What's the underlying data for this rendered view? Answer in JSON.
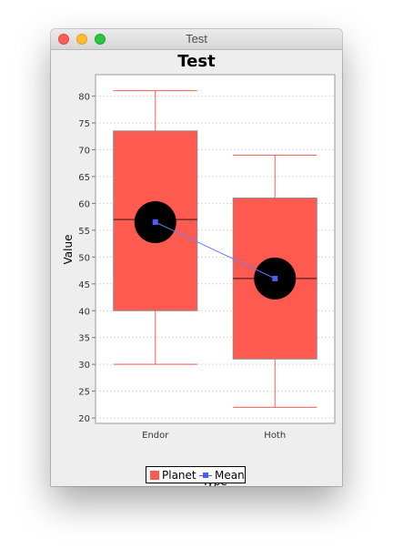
{
  "window": {
    "title": "Test"
  },
  "chart_data": {
    "type": "box",
    "title": "Test",
    "xlabel": "Type",
    "ylabel": "Value",
    "ylim": [
      19,
      84
    ],
    "yticks": [
      20,
      25,
      30,
      35,
      40,
      45,
      50,
      55,
      60,
      65,
      70,
      75,
      80
    ],
    "categories": [
      "Endor",
      "Hoth"
    ],
    "series": [
      {
        "name": "Planet",
        "boxes": [
          {
            "category": "Endor",
            "min": 30,
            "q1": 40,
            "median": 57,
            "q3": 73.5,
            "max": 81
          },
          {
            "category": "Hoth",
            "min": 22,
            "q1": 31,
            "median": 46,
            "q3": 61,
            "max": 69
          }
        ]
      },
      {
        "name": "Mean",
        "values": [
          56.5,
          46
        ]
      }
    ],
    "legend": [
      "Planet",
      "Mean"
    ],
    "legend_position": "bottom",
    "grid": true
  },
  "colors": {
    "box_fill": "#ff5a4f",
    "whisker": "#ff5a4f",
    "box_outline": "#8c8c8c",
    "median_line": "#7a2a24",
    "mean_marker": "#4b5ef7",
    "mean_line": "#6e7bf2",
    "mean_circle": "#000000",
    "grid": "#d9d9d9"
  }
}
